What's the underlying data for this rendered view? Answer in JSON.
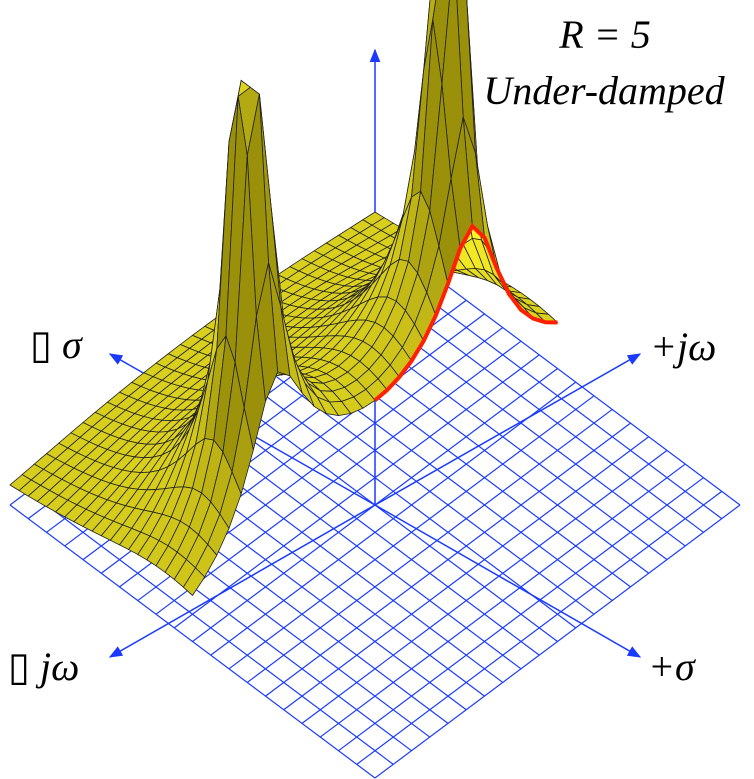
{
  "labels": {
    "resistance": "R = 5",
    "damping": "Under-damped",
    "plus_jw": "+jω",
    "minus_sigma": "▯ σ",
    "minus_jw": "▯ jω",
    "plus_sigma": "+σ"
  }
}
